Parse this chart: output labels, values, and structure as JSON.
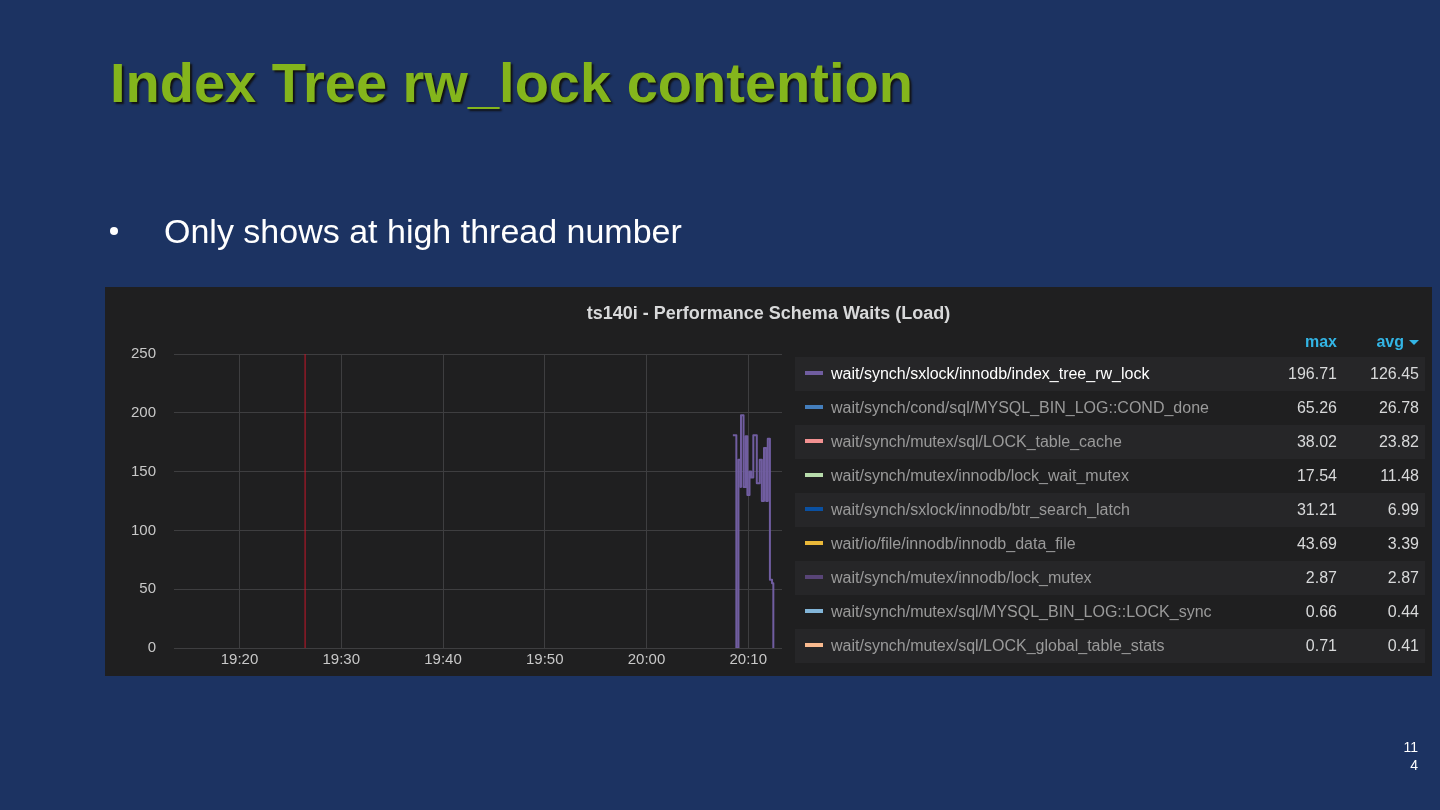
{
  "chart_data": {
    "type": "step",
    "title": "Index Tree rw_lock contention",
    "subtitle": "Only shows at high thread number",
    "annotations": [
      "ts140i - Performance Schema Waits (Load)",
      "max",
      "avg",
      "196.71",
      "126.45",
      "65.26",
      "26.78",
      "38.02",
      "23.82",
      "17.54",
      "11.48",
      "31.21",
      "6.99",
      "43.69",
      "3.39",
      "2.87",
      "2.87",
      "0.66",
      "0.44",
      "0.71",
      "0.41",
      "114"
    ],
    "x": [
      20.1415,
      20.1472,
      20.1507,
      20.1542,
      20.1548,
      20.159,
      20.1625,
      20.1653,
      20.1688,
      20.1715,
      20.175,
      20.1807,
      20.1855,
      20.189,
      20.1925,
      20.196,
      20.1987,
      20.2022,
      20.2057,
      20.2078
    ],
    "series": [
      {
        "name": "wait/synch/sxlock/innodb/index_tree_rw_lock",
        "color": "#705da0",
        "values": [
          181,
          0,
          160,
          137,
          198,
          137,
          180,
          130,
          150,
          145,
          181,
          140,
          160,
          125,
          170,
          125,
          178,
          58,
          55,
          0
        ]
      },
      {
        "name": "wait/synch/cond/sql/MYSQL_BIN_LOG::COND_done",
        "color": "#447ebc",
        "values": [
          null,
          null,
          null,
          null,
          null,
          null,
          null,
          null,
          null,
          null,
          null,
          null,
          null,
          null,
          null,
          null,
          null,
          null,
          null,
          null
        ]
      },
      {
        "name": "wait/synch/mutex/sql/LOCK_table_cache",
        "color": "#f29191",
        "values": [
          null,
          null,
          null,
          null,
          null,
          null,
          null,
          null,
          null,
          null,
          null,
          null,
          null,
          null,
          null,
          null,
          null,
          null,
          null,
          null
        ]
      },
      {
        "name": "wait/synch/mutex/innodb/lock_wait_mutex",
        "color": "#b7dbab",
        "values": [
          null,
          null,
          null,
          null,
          null,
          null,
          null,
          null,
          null,
          null,
          null,
          null,
          null,
          null,
          null,
          null,
          null,
          null,
          null,
          null
        ]
      },
      {
        "name": "wait/synch/sxlock/innodb/btr_search_latch",
        "color": "#0a50a1",
        "values": [
          null,
          null,
          null,
          null,
          null,
          null,
          null,
          null,
          null,
          null,
          null,
          null,
          null,
          null,
          null,
          null,
          null,
          null,
          null,
          null
        ]
      },
      {
        "name": "wait/io/file/innodb/innodb_data_file",
        "color": "#eab839",
        "values": [
          null,
          null,
          null,
          null,
          null,
          null,
          null,
          null,
          null,
          null,
          null,
          null,
          null,
          null,
          null,
          null,
          null,
          null,
          null,
          null
        ]
      },
      {
        "name": "wait/synch/mutex/innodb/lock_mutex",
        "color": "#584477",
        "values": [
          null,
          null,
          null,
          null,
          null,
          null,
          null,
          null,
          null,
          null,
          null,
          null,
          null,
          null,
          null,
          null,
          null,
          null,
          null,
          null
        ]
      },
      {
        "name": "wait/synch/mutex/sql/MYSQL_BIN_LOG::LOCK_sync",
        "color": "#82b5d8",
        "values": [
          null,
          null,
          null,
          null,
          null,
          null,
          null,
          null,
          null,
          null,
          null,
          null,
          null,
          null,
          null,
          null,
          null,
          null,
          null,
          null
        ]
      },
      {
        "name": "wait/synch/mutex/sql/LOCK_global_table_stats",
        "color": "#f9ba8f",
        "values": [
          null,
          null,
          null,
          null,
          null,
          null,
          null,
          null,
          null,
          null,
          null,
          null,
          null,
          null,
          null,
          null,
          null,
          null,
          null,
          null
        ]
      }
    ],
    "xlim": [
      19.226,
      20.222
    ],
    "xticks": [
      {
        "value": 19.3333,
        "label": "19:20"
      },
      {
        "value": 19.5,
        "label": "19:30"
      },
      {
        "value": 19.6667,
        "label": "19:40"
      },
      {
        "value": 19.8333,
        "label": "19:50"
      },
      {
        "value": 20,
        "label": "20:00"
      },
      {
        "value": 20.1667,
        "label": "20:10"
      }
    ],
    "ylim": [
      0,
      250
    ],
    "yticks": [
      0,
      50,
      100,
      150,
      200,
      250
    ],
    "ref_lines": [
      {
        "axis": "x",
        "value": 19.4407,
        "color": "#c4162a"
      }
    ],
    "grid": true,
    "legend": "right",
    "marker": "none",
    "line_style": "solid"
  }
}
